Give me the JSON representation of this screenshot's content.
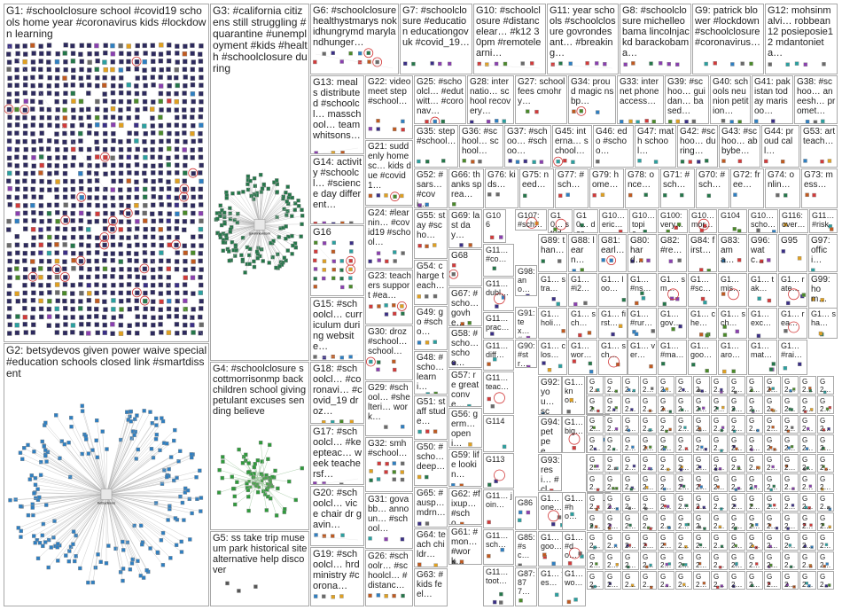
{
  "groups": [
    {
      "id": "G1",
      "text": "G1: #schoolclosure school #covid19 schools home year #coronavirus kids #lockdown learning",
      "style": "grid"
    },
    {
      "id": "G2",
      "text": "G2: betsydevos given power waive special #education schools closed link #smartdissent",
      "style": "hub",
      "hub_label": "betsydevos"
    },
    {
      "id": "G3",
      "text": "G3: #california citizens still struggling #quarantine #unemployment #kids #health #schoolclosure during",
      "style": "hub",
      "hub_label": "gavinnewsom"
    },
    {
      "id": "G4",
      "text": "G4: #schoolclosure scottmorrisonmp back children school giving petulant excuses sending believe",
      "style": "cluster"
    },
    {
      "id": "G5",
      "text": "G5: ss take trip museum park historical site alternative help discover",
      "style": "pairs"
    },
    {
      "id": "G6",
      "text": "G6: #schoolclosure healthystmarys nokidhungrymd marylandhunger…",
      "style": "grid"
    },
    {
      "id": "G7",
      "text": "G7: #schoolclosure #education educationgovuk #covid_19…",
      "style": "grid"
    },
    {
      "id": "G8",
      "text": "G8: #schoolclosure michelleobama lincolnjackd barackobama…",
      "style": "grid"
    },
    {
      "id": "G9",
      "text": "G9: patrick blower #lockdown #schoolclosure #coronavirus…",
      "style": "grid"
    },
    {
      "id": "G10",
      "text": "G10: #schoolclosure #distancelear… #k12 30pm #remotelearni…",
      "style": "grid"
    },
    {
      "id": "G11",
      "text": "G11: year schools #schoolclosure govrondesant… #breaking…",
      "style": "grid"
    },
    {
      "id": "G12",
      "text": "G12: mohsinmalvi… robbean12 posieposie12 mdantonieta…",
      "style": "grid"
    },
    {
      "id": "G13",
      "text": "G13: meals distributed #schoolcl… masschool… team whitsons…",
      "style": "grid"
    },
    {
      "id": "G14",
      "text": "G14: activity #schoolcl… #science day different…",
      "style": "grid"
    },
    {
      "id": "G15",
      "text": "G15: #schoolcl… curriculum during website…",
      "style": "grid"
    },
    {
      "id": "G16",
      "text": "G16",
      "style": "grid"
    },
    {
      "id": "G17",
      "text": "G17: #schoolcl… #keepteac… week teachersf…",
      "style": "grid"
    },
    {
      "id": "G18",
      "text": "G18: #schoolcl… #coronavi… #covid_19 dr oz…",
      "style": "grid"
    },
    {
      "id": "G19",
      "text": "G19: #schoolcl… hrdministry #corona…",
      "style": "grid"
    },
    {
      "id": "G20",
      "text": "G20: #schoolcl… vice chair dr gavin…",
      "style": "grid"
    },
    {
      "id": "G21",
      "text": "G21: suddenly homesc… kids due #covid1…",
      "style": "grid"
    },
    {
      "id": "G22",
      "text": "G22: video meet step #school…",
      "style": "grid"
    },
    {
      "id": "G23",
      "text": "G23: teachers support #ea…",
      "style": "grid"
    },
    {
      "id": "G24",
      "text": "G24: #learnin… #covid19 #school…",
      "style": "grid"
    },
    {
      "id": "G25",
      "text": "G25: #schoolcl… #edutwitt… #coronav…",
      "style": "grid"
    },
    {
      "id": "G26",
      "text": "G26: #schoolr… #schoolcl… #distanc…",
      "style": "grid"
    },
    {
      "id": "G27",
      "text": "G27: school fees cmohry…",
      "style": "grid"
    },
    {
      "id": "G28",
      "text": "G28: internatio… school recovery…",
      "style": "grid"
    },
    {
      "id": "G29",
      "text": "G29: #school… #shelteri… work…",
      "style": "grid"
    },
    {
      "id": "G30",
      "text": "G30: droz #school… school…",
      "style": "grid"
    },
    {
      "id": "G31",
      "text": "G31: govabb… announ… #school…",
      "style": "grid"
    },
    {
      "id": "G32",
      "text": "G32: smh #school…",
      "style": "grid"
    },
    {
      "id": "G33",
      "text": "G33: internet phone access…",
      "style": "grid"
    },
    {
      "id": "G34",
      "text": "G34: proud magic nsbp…",
      "style": "grid"
    },
    {
      "id": "G35",
      "text": "G35: step #school…",
      "style": "grid"
    },
    {
      "id": "G36",
      "text": "G36: #school… school…",
      "style": "grid"
    },
    {
      "id": "G37",
      "text": "G37: #schoo… #schoo…",
      "style": "grid"
    },
    {
      "id": "G38",
      "text": "G38: #schoo… aneesh… promet…",
      "style": "grid"
    },
    {
      "id": "G39",
      "text": "G39: #schoo… guidan… based…",
      "style": "grid"
    },
    {
      "id": "G40",
      "text": "G40: schools neunion petition…",
      "style": "grid"
    },
    {
      "id": "G41",
      "text": "G41: pakistan today marisoo…",
      "style": "grid"
    },
    {
      "id": "G42",
      "text": "G42: #schoo… during…",
      "style": "grid"
    },
    {
      "id": "G43",
      "text": "G43: #schoo… abbybe…",
      "style": "grid"
    },
    {
      "id": "G44",
      "text": "G44: proud call…",
      "style": "grid"
    },
    {
      "id": "G45",
      "text": "G45: interna… school…",
      "style": "grid"
    },
    {
      "id": "G46",
      "text": "G46: edo #schoo…",
      "style": "grid"
    },
    {
      "id": "G47",
      "text": "G47: math school…",
      "style": "grid"
    },
    {
      "id": "G48",
      "text": "G48: #scho… learni…",
      "style": "grid"
    },
    {
      "id": "G49",
      "text": "G49: go #scho…",
      "style": "grid"
    },
    {
      "id": "G50",
      "text": "G50: #scho… deep…",
      "style": "grid"
    },
    {
      "id": "G51",
      "text": "G51: staff stude…",
      "style": "grid"
    },
    {
      "id": "G52",
      "text": "G52: #sars… #covi…",
      "style": "grid"
    },
    {
      "id": "G53",
      "text": "G53: art teach…",
      "style": "grid"
    },
    {
      "id": "G54",
      "text": "G54: charge teach…",
      "style": "grid"
    },
    {
      "id": "G55",
      "text": "G55: stay #scho…",
      "style": "grid"
    },
    {
      "id": "G56",
      "text": "G56: germ… openi…",
      "style": "grid"
    },
    {
      "id": "G57",
      "text": "G57: re great conve…",
      "style": "grid"
    },
    {
      "id": "G58",
      "text": "G58: #scho… schoo…",
      "style": "grid"
    },
    {
      "id": "G59",
      "text": "G59: life lookin…",
      "style": "grid"
    },
    {
      "id": "G61",
      "text": "G61: #mon… #work…",
      "style": "grid"
    },
    {
      "id": "G62",
      "text": "G62: #fixup… #scho…",
      "style": "grid"
    },
    {
      "id": "G63",
      "text": "G63: #kids feel…",
      "style": "grid"
    },
    {
      "id": "G64",
      "text": "G64: teach childr…",
      "style": "grid"
    },
    {
      "id": "G65",
      "text": "G65: #ausp… mdrn…",
      "style": "grid"
    },
    {
      "id": "G66",
      "text": "G66: thanks sprea…",
      "style": "grid"
    },
    {
      "id": "G67",
      "text": "G67: #scho… govhe…",
      "style": "grid"
    },
    {
      "id": "G68",
      "text": "G68",
      "style": "grid"
    },
    {
      "id": "G69",
      "text": "G69: last day…",
      "style": "grid"
    },
    {
      "id": "G70",
      "text": "G70: #sch…",
      "style": "grid"
    },
    {
      "id": "G71",
      "text": "G71: #sch…",
      "style": "grid"
    },
    {
      "id": "G72",
      "text": "G72: free…",
      "style": "grid"
    },
    {
      "id": "G73",
      "text": "G73: mess…",
      "style": "grid"
    },
    {
      "id": "G74",
      "text": "G74: onlin…",
      "style": "grid"
    },
    {
      "id": "G75",
      "text": "G75: need…",
      "style": "grid"
    },
    {
      "id": "G76",
      "text": "G76: kids…",
      "style": "grid"
    },
    {
      "id": "G77",
      "text": "G77: #sch…",
      "style": "grid"
    },
    {
      "id": "G78",
      "text": "G78: once…",
      "style": "grid"
    },
    {
      "id": "G79",
      "text": "G79: home…",
      "style": "grid"
    },
    {
      "id": "G80",
      "text": "G80: hard…",
      "style": "grid"
    },
    {
      "id": "G81",
      "text": "G81: earl…",
      "style": "grid"
    },
    {
      "id": "G82",
      "text": "G82: #re…",
      "style": "grid"
    },
    {
      "id": "G83",
      "text": "G83: ama…",
      "style": "grid"
    },
    {
      "id": "G84",
      "text": "G84: first…",
      "style": "grid"
    },
    {
      "id": "G85",
      "text": "G85: #sc…",
      "style": "grid"
    },
    {
      "id": "G86",
      "text": "G86",
      "style": "grid"
    },
    {
      "id": "G87",
      "text": "G87: 877…",
      "style": "grid"
    },
    {
      "id": "G88",
      "text": "G88: learn…",
      "style": "grid"
    },
    {
      "id": "G89",
      "text": "G89: than…",
      "style": "grid"
    },
    {
      "id": "G90",
      "text": "G90: #str…",
      "style": "grid"
    },
    {
      "id": "G91",
      "text": "G91: tex… #sc…",
      "style": "grid"
    },
    {
      "id": "G92",
      "text": "G92: you… sch…",
      "style": "grid"
    },
    {
      "id": "G93",
      "text": "G93: resi… #cl…",
      "style": "grid"
    },
    {
      "id": "G94",
      "text": "G94: pet pee…",
      "style": "grid"
    },
    {
      "id": "G95",
      "text": "G95",
      "style": "grid"
    },
    {
      "id": "G96",
      "text": "G96: watc…",
      "style": "grid"
    },
    {
      "id": "G97",
      "text": "G97: offici…",
      "style": "grid"
    },
    {
      "id": "G98",
      "text": "G98: ano… we…",
      "style": "grid"
    },
    {
      "id": "G99",
      "text": "G99: hom…",
      "style": "grid"
    }
  ],
  "mini": [
    {
      "text": "G106"
    },
    {
      "text": "G107: #sch…"
    },
    {
      "text": "G10… stud…"
    },
    {
      "text": "G10… des"
    },
    {
      "text": "G10… eric…"
    },
    {
      "text": "G10… topic…"
    },
    {
      "text": "G100: very…"
    },
    {
      "text": "G10… mor…"
    },
    {
      "text": "G104"
    },
    {
      "text": "G10… scho…"
    },
    {
      "text": "G116: over…"
    },
    {
      "text": "G11… #risk"
    },
    {
      "text": "G11… #co…"
    },
    {
      "text": "G11… dubl…"
    },
    {
      "text": "G11… prac…"
    },
    {
      "text": "G11… diff…"
    },
    {
      "text": "G11… teac…"
    },
    {
      "text": "G114"
    },
    {
      "text": "G113"
    },
    {
      "text": "G11… join…"
    },
    {
      "text": "G11… sch…"
    },
    {
      "text": "G11… toot…"
    },
    {
      "text": "G1… stra…"
    },
    {
      "text": "G1… holi…"
    },
    {
      "text": "G1… clos…"
    },
    {
      "text": "G1… kno…"
    },
    {
      "text": "G1… big…"
    },
    {
      "text": "G1… one…"
    },
    {
      "text": "G1… goo…"
    },
    {
      "text": "G1… yes…"
    },
    {
      "text": "G1… #i2…"
    },
    {
      "text": "G1… sch…"
    },
    {
      "text": "G1… wor…"
    },
    {
      "text": "G1… boy…"
    },
    {
      "text": "G1… doi…"
    },
    {
      "text": "G1… day…"
    },
    {
      "text": "G1… #ho…"
    },
    {
      "text": "G1… #do…"
    },
    {
      "text": "G1… wo…"
    },
    {
      "text": "G1… sch…"
    },
    {
      "text": "G1… loo…"
    },
    {
      "text": "G1… first…"
    },
    {
      "text": "G1… #rur…"
    },
    {
      "text": "G1… #ns…"
    },
    {
      "text": "G1… sm…"
    },
    {
      "text": "G1… #sc…"
    },
    {
      "text": "G1… gov…"
    },
    {
      "text": "G1… che…"
    },
    {
      "text": "G1… sch…"
    },
    {
      "text": "G1… mis…"
    },
    {
      "text": "G1… tak…"
    },
    {
      "text": "G1… exc…"
    },
    {
      "text": "G1… rate…"
    },
    {
      "text": "G1… rea…"
    },
    {
      "text": "G1… sha…"
    },
    {
      "text": "G1… #rai…"
    },
    {
      "text": "G1… mat…"
    },
    {
      "text": "G1… aro…"
    },
    {
      "text": "G1… goo…"
    },
    {
      "text": "G1… #ma…"
    },
    {
      "text": "G1… ver…"
    },
    {
      "text": "G1… sch…"
    }
  ],
  "tiny_label": "G2…",
  "colors": {
    "panel_border": "#a8a8a8",
    "edge": "#b5b5b5",
    "G1": "#3a2f86",
    "G2": "#2e7fc2",
    "G3": "#24774a",
    "G4": "#2f9a3c",
    "G5": "#555555",
    "accent_red": "#d23a3a"
  }
}
